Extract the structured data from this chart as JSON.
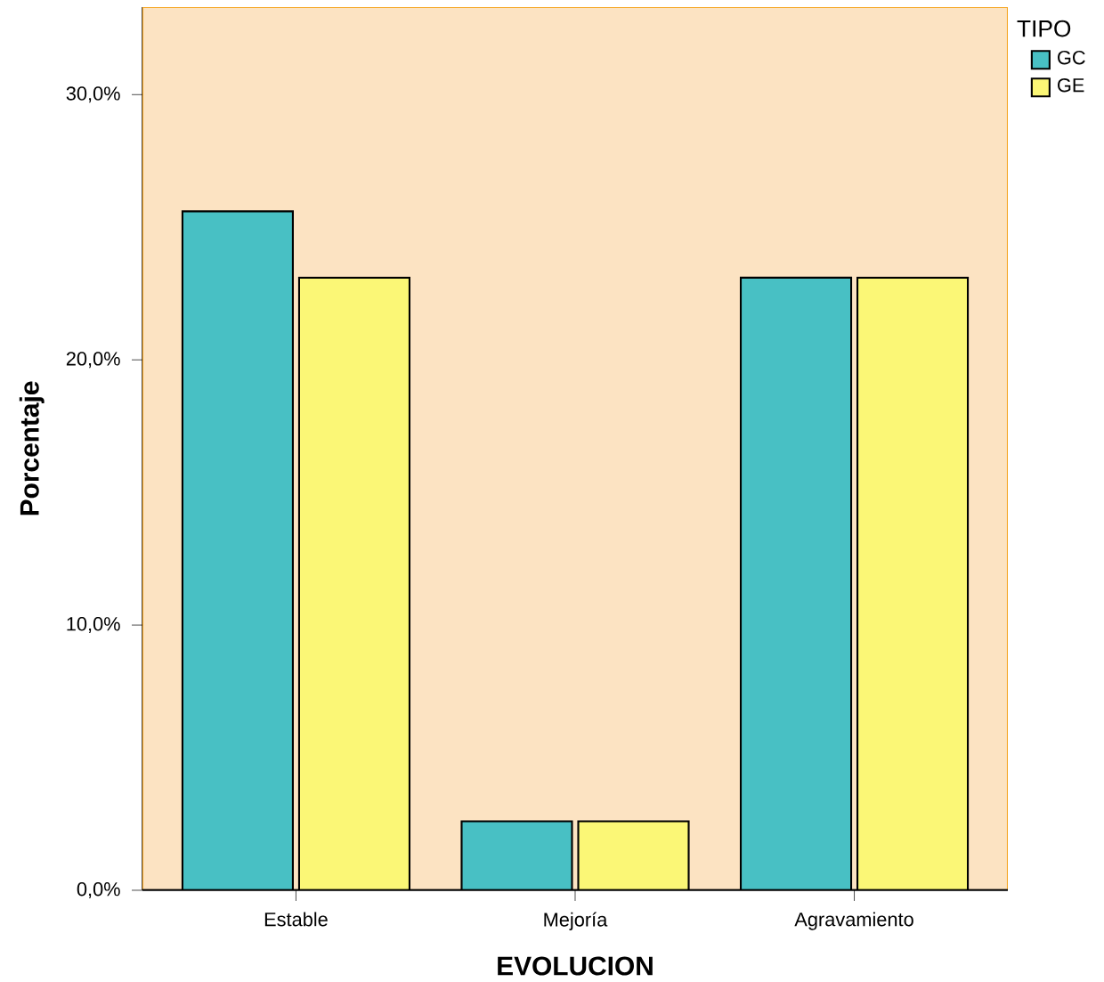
{
  "chart_data": {
    "type": "bar",
    "xlabel": "EVOLUCION",
    "ylabel": "Porcentaje",
    "legend_title": "TIPO",
    "legend": "top right",
    "categories": [
      "Estable",
      "Mejoría",
      "Agravamiento"
    ],
    "series": [
      {
        "name": "GC",
        "color": "#48c0c4",
        "values": [
          25.6,
          2.6,
          23.1
        ]
      },
      {
        "name": "GE",
        "color": "#fbf776",
        "values": [
          23.1,
          2.6,
          23.1
        ]
      }
    ],
    "ylim": [
      0,
      33.3
    ],
    "yticks": [
      {
        "value": 0,
        "label": "0,0%"
      },
      {
        "value": 10,
        "label": "10,0%"
      },
      {
        "value": 20,
        "label": "20,0%"
      },
      {
        "value": 30,
        "label": "30,0%"
      }
    ]
  }
}
